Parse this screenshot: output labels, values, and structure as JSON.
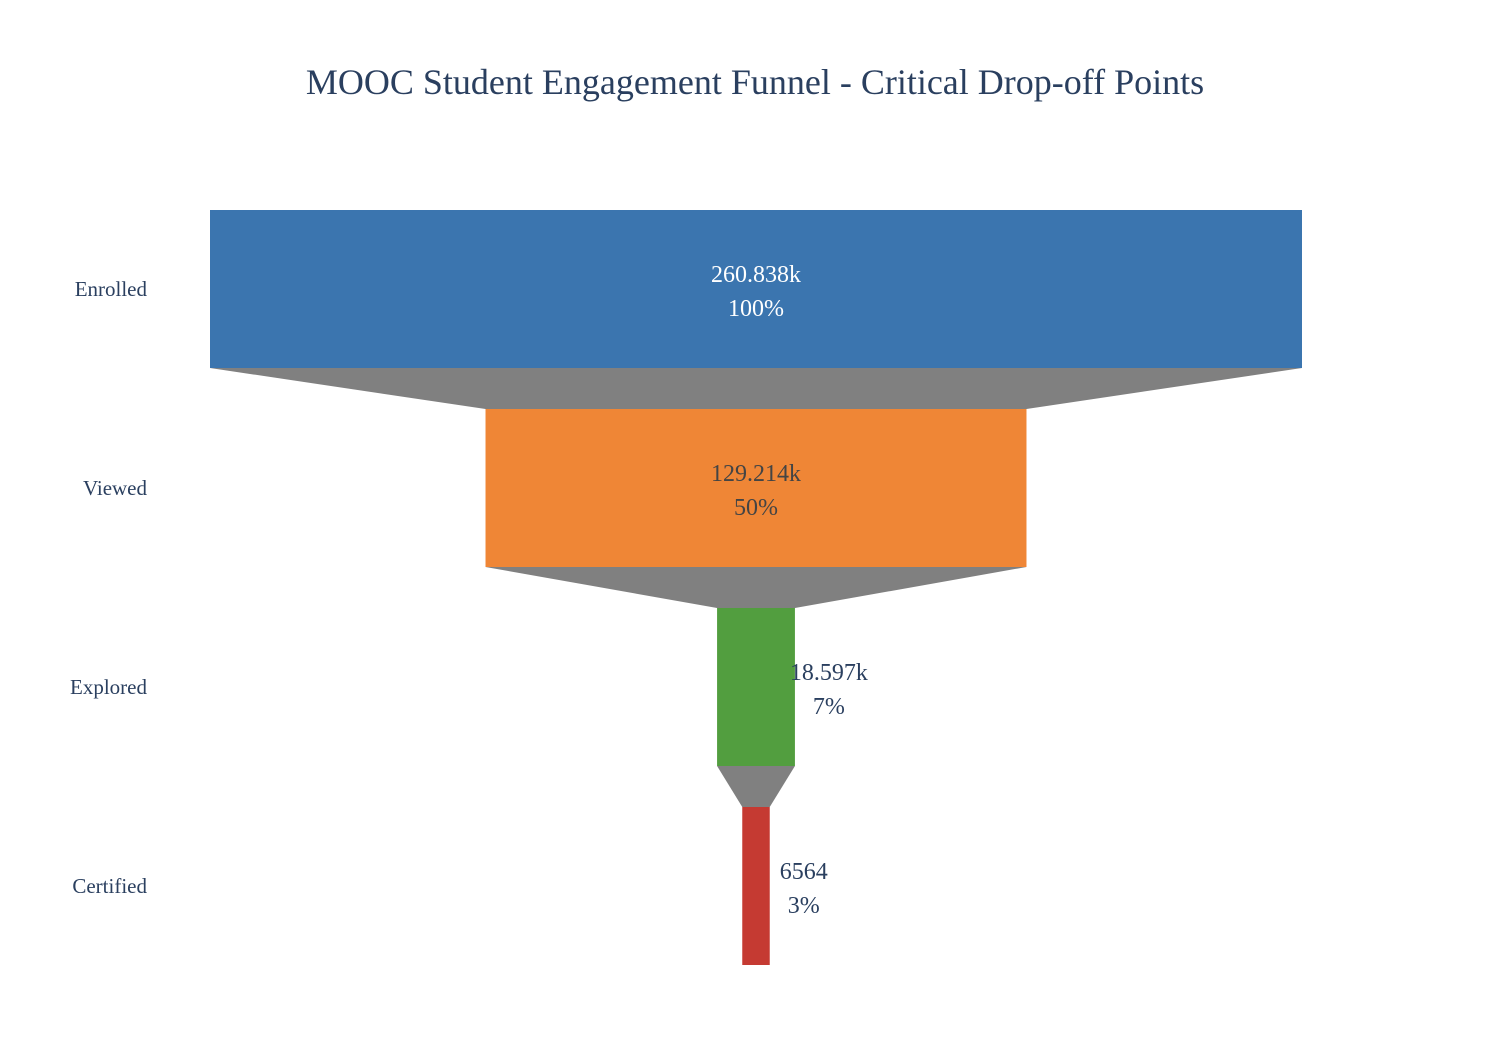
{
  "chart_data": {
    "type": "funnel",
    "title": "MOOC Student Engagement Funnel - Critical Drop-off Points",
    "stages": [
      {
        "label": "Enrolled",
        "value": 260838,
        "value_text": "260.838k",
        "percent_text": "100%",
        "color": "#3b75af",
        "text_color": "#ffffff"
      },
      {
        "label": "Viewed",
        "value": 129214,
        "value_text": "129.214k",
        "percent_text": "50%",
        "color": "#ef8636",
        "text_color": "#444444"
      },
      {
        "label": "Explored",
        "value": 18597,
        "value_text": "18.597k",
        "percent_text": "7%",
        "color": "#529e3f",
        "text_color": "#2a3f5f"
      },
      {
        "label": "Certified",
        "value": 6564,
        "value_text": "6564",
        "percent_text": "3%",
        "color": "#c53a32",
        "text_color": "#2a3f5f"
      }
    ],
    "connector_color": "#808080",
    "text_position": "inside-or-outside",
    "legend": "none"
  }
}
